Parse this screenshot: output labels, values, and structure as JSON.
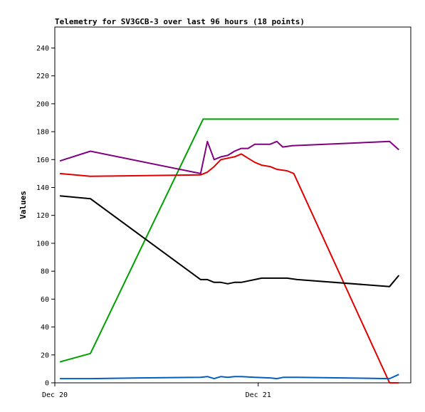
{
  "chart_data": {
    "type": "line",
    "title": "Telemetry for SV3GCB-3 over last 96 hours (18 points)",
    "xlabel": "",
    "ylabel": "Values",
    "ylim": [
      0,
      255
    ],
    "y_ticks": [
      0,
      20,
      40,
      60,
      80,
      100,
      120,
      140,
      160,
      180,
      200,
      220,
      240
    ],
    "x_tick_labels": [
      {
        "label": "Dec 20",
        "t": 0
      },
      {
        "label": "Dec 21",
        "t": 24
      }
    ],
    "xlim": [
      0,
      42
    ],
    "grid": false,
    "series": [
      {
        "color": "#00a000",
        "points": [
          [
            0.6,
            15
          ],
          [
            4.2,
            21
          ],
          [
            17.5,
            189
          ],
          [
            40.6,
            189
          ]
        ]
      },
      {
        "color": "#800080",
        "points": [
          [
            0.6,
            159
          ],
          [
            4.2,
            166
          ],
          [
            17.2,
            150
          ],
          [
            18.0,
            173
          ],
          [
            18.8,
            160
          ],
          [
            19.6,
            162
          ],
          [
            20.4,
            163
          ],
          [
            21.2,
            166
          ],
          [
            22.0,
            168
          ],
          [
            22.8,
            168
          ],
          [
            23.6,
            171
          ],
          [
            25.4,
            171
          ],
          [
            26.2,
            173
          ],
          [
            26.9,
            169
          ],
          [
            28.0,
            170
          ],
          [
            39.5,
            173
          ],
          [
            40.6,
            167
          ]
        ]
      },
      {
        "color": "#e00000",
        "points": [
          [
            0.6,
            150
          ],
          [
            4.2,
            148
          ],
          [
            17.2,
            149
          ],
          [
            18.0,
            151
          ],
          [
            18.8,
            155
          ],
          [
            19.6,
            160
          ],
          [
            20.4,
            161
          ],
          [
            21.2,
            162
          ],
          [
            22.0,
            164
          ],
          [
            22.8,
            161
          ],
          [
            23.6,
            158
          ],
          [
            24.4,
            156
          ],
          [
            25.4,
            155
          ],
          [
            26.2,
            153
          ],
          [
            27.4,
            152
          ],
          [
            28.2,
            150
          ],
          [
            39.5,
            0
          ],
          [
            40.6,
            0
          ]
        ]
      },
      {
        "color": "#000000",
        "points": [
          [
            0.6,
            134
          ],
          [
            4.2,
            132
          ],
          [
            17.2,
            74
          ],
          [
            18.0,
            74
          ],
          [
            18.8,
            72
          ],
          [
            19.6,
            72
          ],
          [
            20.4,
            71
          ],
          [
            21.2,
            72
          ],
          [
            22.0,
            72
          ],
          [
            23.6,
            74
          ],
          [
            24.4,
            75
          ],
          [
            27.4,
            75
          ],
          [
            28.6,
            74
          ],
          [
            39.5,
            69
          ],
          [
            40.6,
            77
          ]
        ]
      },
      {
        "color": "#0060c0",
        "points": [
          [
            0.6,
            3
          ],
          [
            4.2,
            3
          ],
          [
            10.0,
            3.5
          ],
          [
            17.2,
            4
          ],
          [
            18.0,
            4.5
          ],
          [
            18.8,
            3
          ],
          [
            19.6,
            4.5
          ],
          [
            20.4,
            4
          ],
          [
            21.2,
            4.5
          ],
          [
            22.0,
            4.5
          ],
          [
            23.6,
            4
          ],
          [
            25.4,
            3.5
          ],
          [
            26.2,
            3
          ],
          [
            27.0,
            4
          ],
          [
            28.6,
            4
          ],
          [
            39.5,
            3
          ],
          [
            40.6,
            6
          ]
        ]
      }
    ]
  }
}
